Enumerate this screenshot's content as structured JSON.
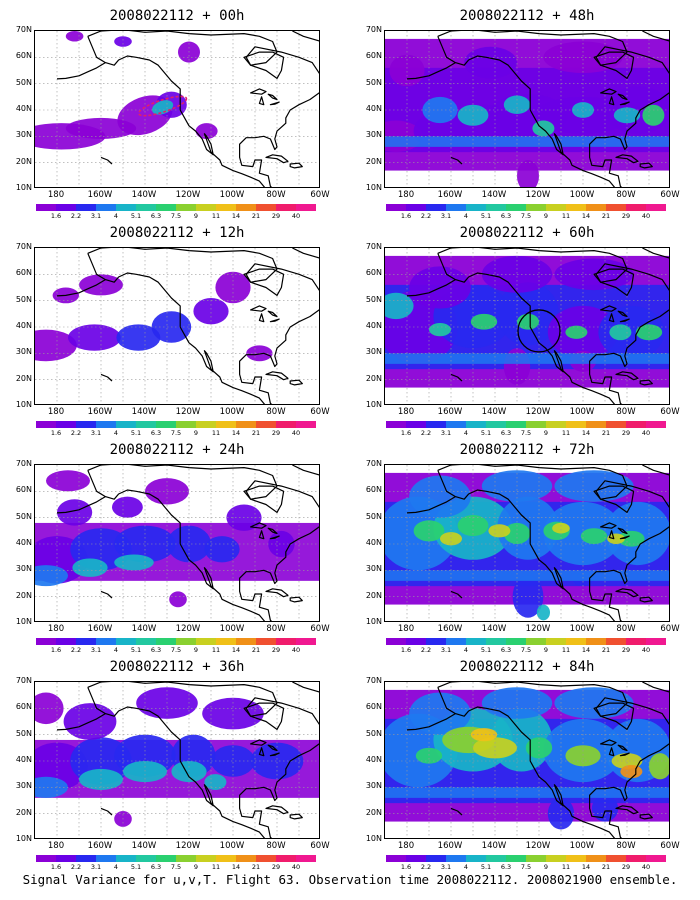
{
  "panels": [
    {
      "title": "2008022112 + 00h",
      "level": 0
    },
    {
      "title": "2008022112 + 48h",
      "level": 4
    },
    {
      "title": "2008022112 + 12h",
      "level": 1
    },
    {
      "title": "2008022112 + 60h",
      "level": 5
    },
    {
      "title": "2008022112 + 24h",
      "level": 2
    },
    {
      "title": "2008022112 + 72h",
      "level": 6
    },
    {
      "title": "2008022112 + 36h",
      "level": 3
    },
    {
      "title": "2008022112 + 84h",
      "level": 7
    }
  ],
  "y_labels": [
    "70N",
    "60N",
    "50N",
    "40N",
    "30N",
    "20N",
    "10N"
  ],
  "x_labels": [
    "180",
    "160W",
    "140W",
    "120W",
    "100W",
    "80W",
    "60W"
  ],
  "colorbar": {
    "labels": [
      "1.6",
      "2.2",
      "3.1",
      "4",
      "5.1",
      "6.3",
      "7.5",
      "9",
      "11",
      "14",
      "21",
      "29",
      "40"
    ],
    "colors": [
      "#8b00d6",
      "#6a00e6",
      "#2828f0",
      "#1e78f0",
      "#18b4c8",
      "#22c8a0",
      "#2ad070",
      "#8ad030",
      "#c8d020",
      "#f0c018",
      "#f09018",
      "#f05030",
      "#f01c6c",
      "#f01890"
    ]
  },
  "caption": "Signal Variance for u,v,T. Flight 63. Observation time 2008022112. 2008021900 ensemble."
}
